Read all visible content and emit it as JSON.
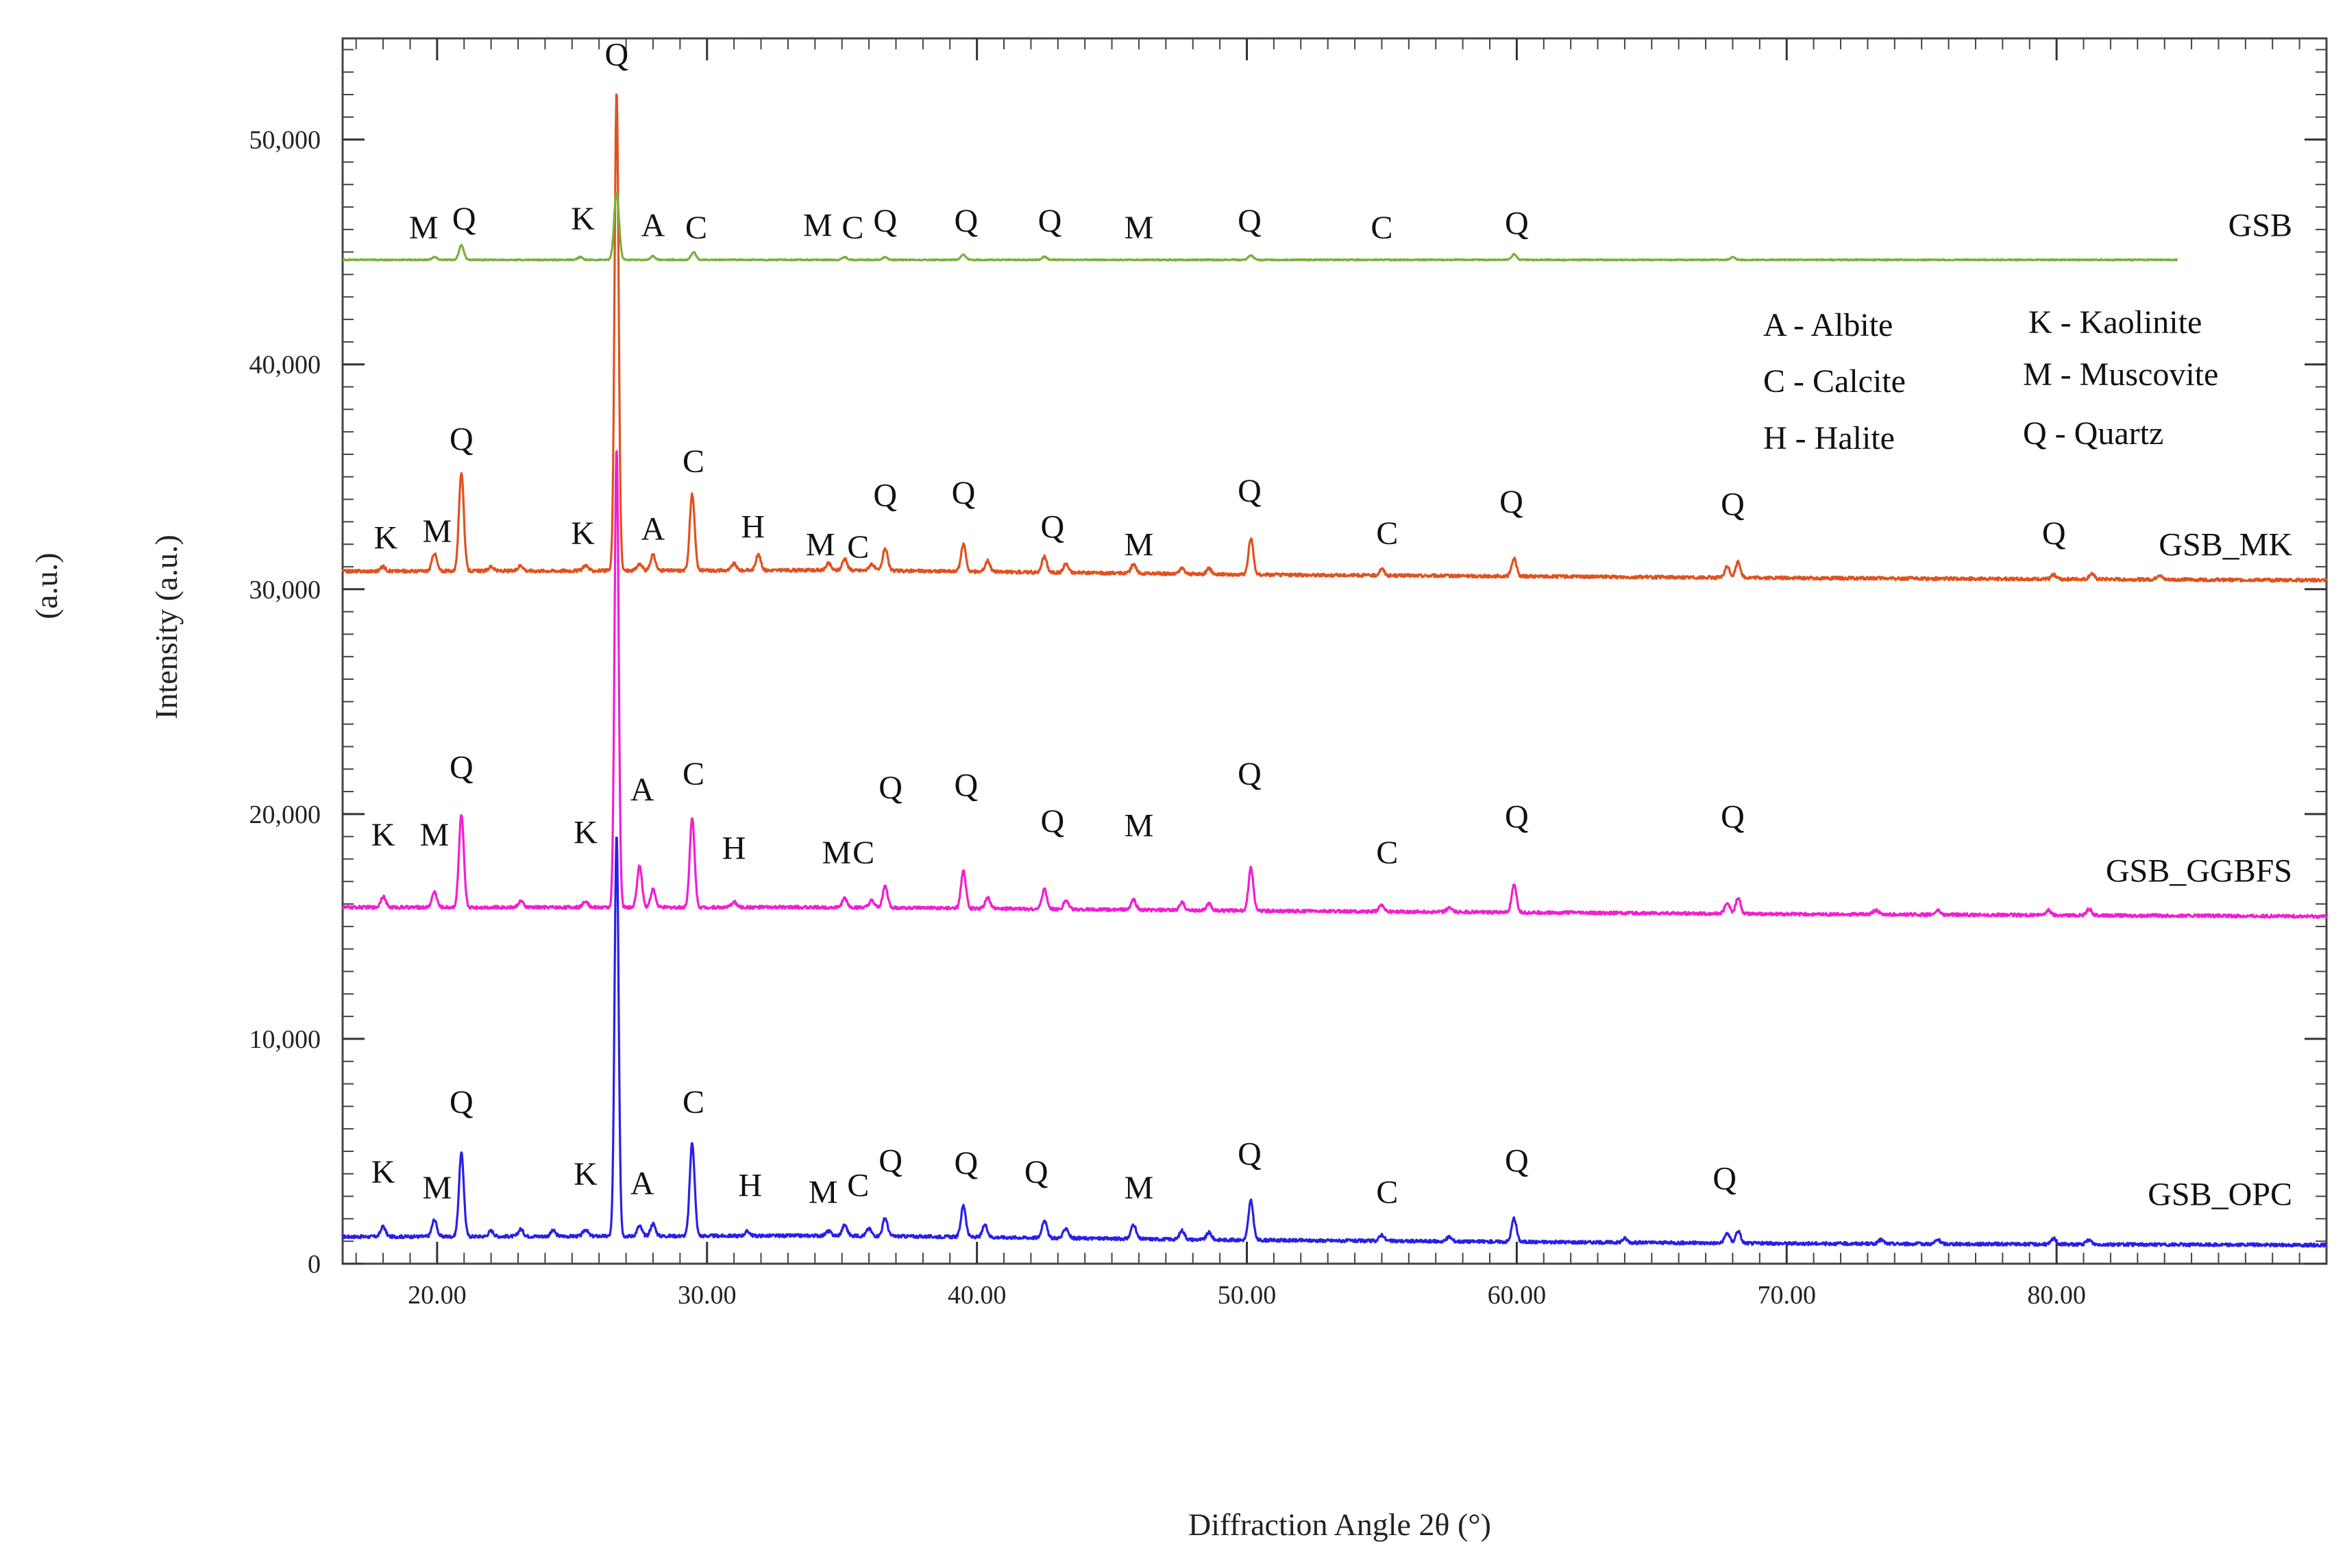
{
  "chart_data": {
    "type": "line",
    "title": "",
    "xlabel": "Diffraction Angle 2θ (°)",
    "ylabel": "Intensity (a.u.)",
    "outer_ylabel": "(a.u.)",
    "xlim": [
      16.5,
      90
    ],
    "ylim": [
      0,
      54500
    ],
    "x_ticks": [
      20,
      30,
      40,
      50,
      60,
      70,
      80
    ],
    "x_tick_labels": [
      "20.00",
      "30.00",
      "40.00",
      "50.00",
      "60.00",
      "70.00",
      "80.00"
    ],
    "y_ticks": [
      0,
      10000,
      20000,
      30000,
      40000,
      50000
    ],
    "y_tick_labels": [
      "0",
      "10,000",
      "20,000",
      "30,000",
      "40,000",
      "50,000"
    ],
    "legend": {
      "position": "top-right",
      "entries": [
        "A - Albite",
        "C - Calcite",
        "H - Halite",
        "K - Kaolinite",
        "M - Muscovite",
        "Q - Quartz"
      ]
    },
    "series": [
      {
        "name": "GSB_OPC",
        "color": "#2a1fe8",
        "x_end": 90,
        "baseline": [
          [
            16.5,
            1200
          ],
          [
            35,
            1250
          ],
          [
            50,
            1050
          ],
          [
            70,
            900
          ],
          [
            90,
            830
          ]
        ],
        "peaks": [
          [
            18,
            450
          ],
          [
            19.9,
            750
          ],
          [
            20.9,
            3700
          ],
          [
            22,
            250
          ],
          [
            23.1,
            320
          ],
          [
            24.3,
            250
          ],
          [
            25.5,
            300
          ],
          [
            26.65,
            17900
          ],
          [
            27.5,
            450
          ],
          [
            28,
            550
          ],
          [
            29.45,
            4150
          ],
          [
            31.5,
            200
          ],
          [
            34.5,
            200
          ],
          [
            35.1,
            480
          ],
          [
            36,
            320
          ],
          [
            36.6,
            800
          ],
          [
            39.5,
            1400
          ],
          [
            40.3,
            550
          ],
          [
            42.5,
            800
          ],
          [
            43.3,
            450
          ],
          [
            45.8,
            650
          ],
          [
            47.6,
            400
          ],
          [
            48.6,
            320
          ],
          [
            50.15,
            1750
          ],
          [
            55,
            280
          ],
          [
            57.5,
            200
          ],
          [
            59.9,
            1050
          ],
          [
            64,
            180
          ],
          [
            67.8,
            450
          ],
          [
            68.2,
            550
          ],
          [
            73.5,
            180
          ],
          [
            75.6,
            180
          ],
          [
            79.9,
            260
          ],
          [
            81.2,
            200
          ]
        ],
        "annotations": [
          [
            18.0,
            3600,
            "K"
          ],
          [
            20.0,
            2900,
            "M"
          ],
          [
            20.9,
            6700,
            "Q"
          ],
          [
            25.5,
            3500,
            "K"
          ],
          [
            27.6,
            3100,
            "A"
          ],
          [
            29.5,
            6700,
            "C"
          ],
          [
            31.6,
            3000,
            "H"
          ],
          [
            34.3,
            2700,
            "M"
          ],
          [
            35.6,
            3000,
            "C"
          ],
          [
            36.8,
            4100,
            "Q"
          ],
          [
            39.6,
            4000,
            "Q"
          ],
          [
            42.2,
            3600,
            "Q"
          ],
          [
            46.0,
            2900,
            "M"
          ],
          [
            50.1,
            4400,
            "Q"
          ],
          [
            55.2,
            2700,
            "C"
          ],
          [
            60.0,
            4100,
            "Q"
          ],
          [
            67.7,
            3300,
            "Q"
          ]
        ],
        "end_label": "GSB_OPC",
        "end_label_y": 2600
      },
      {
        "name": "GSB_GGBFS",
        "color": "#f21ed1",
        "x_end": 90,
        "baseline": [
          [
            16.5,
            15850
          ],
          [
            35,
            15850
          ],
          [
            50,
            15700
          ],
          [
            70,
            15550
          ],
          [
            90,
            15450
          ]
        ],
        "peaks": [
          [
            18,
            500
          ],
          [
            19.9,
            700
          ],
          [
            20.9,
            4100
          ],
          [
            23.1,
            280
          ],
          [
            25.5,
            300
          ],
          [
            26.65,
            20400
          ],
          [
            27.5,
            1850
          ],
          [
            28,
            800
          ],
          [
            29.45,
            3950
          ],
          [
            31,
            250
          ],
          [
            35.1,
            400
          ],
          [
            36.1,
            300
          ],
          [
            36.6,
            950
          ],
          [
            39.5,
            1650
          ],
          [
            40.4,
            500
          ],
          [
            42.5,
            900
          ],
          [
            43.3,
            400
          ],
          [
            45.8,
            450
          ],
          [
            47.6,
            350
          ],
          [
            48.6,
            300
          ],
          [
            50.15,
            1900
          ],
          [
            55,
            300
          ],
          [
            57.5,
            200
          ],
          [
            59.9,
            1200
          ],
          [
            67.8,
            500
          ],
          [
            68.2,
            700
          ],
          [
            73.3,
            200
          ],
          [
            75.6,
            200
          ],
          [
            79.7,
            220
          ],
          [
            81.2,
            300
          ]
        ],
        "annotations": [
          [
            18.0,
            18600,
            "K"
          ],
          [
            19.9,
            18600,
            "M"
          ],
          [
            20.9,
            21600,
            "Q"
          ],
          [
            25.5,
            18700,
            "K"
          ],
          [
            27.6,
            20600,
            "A"
          ],
          [
            29.5,
            21300,
            "C"
          ],
          [
            31.0,
            18000,
            "H"
          ],
          [
            34.8,
            17800,
            "M"
          ],
          [
            35.8,
            17800,
            "C"
          ],
          [
            36.8,
            20700,
            "Q"
          ],
          [
            39.6,
            20800,
            "Q"
          ],
          [
            42.8,
            19200,
            "Q"
          ],
          [
            46.0,
            19000,
            "M"
          ],
          [
            50.1,
            21300,
            "Q"
          ],
          [
            55.2,
            17800,
            "C"
          ],
          [
            60.0,
            19400,
            "Q"
          ],
          [
            68.0,
            19400,
            "Q"
          ]
        ],
        "end_label": "GSB_GGBFS",
        "end_label_y": 17000
      },
      {
        "name": "GSB_MK",
        "color": "#e0521f",
        "x_end": 90,
        "baseline": [
          [
            16.5,
            30800
          ],
          [
            35,
            30850
          ],
          [
            50,
            30650
          ],
          [
            70,
            30500
          ],
          [
            90,
            30400
          ]
        ],
        "peaks": [
          [
            18,
            200
          ],
          [
            19.9,
            800
          ],
          [
            20.9,
            4400
          ],
          [
            22,
            200
          ],
          [
            23.1,
            250
          ],
          [
            25.5,
            250
          ],
          [
            26.65,
            21300
          ],
          [
            27.5,
            300
          ],
          [
            28,
            700
          ],
          [
            29.45,
            3400
          ],
          [
            31,
            300
          ],
          [
            31.9,
            700
          ],
          [
            34.5,
            300
          ],
          [
            35.1,
            500
          ],
          [
            36.1,
            300
          ],
          [
            36.6,
            1000
          ],
          [
            39.5,
            1200
          ],
          [
            40.4,
            500
          ],
          [
            42.5,
            700
          ],
          [
            43.3,
            400
          ],
          [
            45.8,
            400
          ],
          [
            47.6,
            250
          ],
          [
            48.6,
            250
          ],
          [
            50.15,
            1600
          ],
          [
            55,
            300
          ],
          [
            59.9,
            800
          ],
          [
            67.8,
            500
          ],
          [
            68.2,
            700
          ],
          [
            79.9,
            200
          ],
          [
            81.3,
            250
          ],
          [
            83.8,
            200
          ]
        ],
        "annotations": [
          [
            18.1,
            31800,
            "K"
          ],
          [
            20.0,
            32100,
            "M"
          ],
          [
            20.9,
            36200,
            "Q"
          ],
          [
            25.4,
            32000,
            "K"
          ],
          [
            28.0,
            32200,
            "A"
          ],
          [
            29.5,
            35200,
            "C"
          ],
          [
            31.7,
            32300,
            "H"
          ],
          [
            34.2,
            31500,
            "M"
          ],
          [
            35.6,
            31400,
            "C"
          ],
          [
            36.6,
            33700,
            "Q"
          ],
          [
            39.5,
            33800,
            "Q"
          ],
          [
            42.8,
            32300,
            "Q"
          ],
          [
            46.0,
            31500,
            "M"
          ],
          [
            50.1,
            33900,
            "Q"
          ],
          [
            55.2,
            32000,
            "C"
          ],
          [
            59.8,
            33400,
            "Q"
          ],
          [
            68.0,
            33300,
            "Q"
          ],
          [
            79.9,
            32000,
            "Q"
          ]
        ],
        "end_label": "GSB_MK",
        "end_label_y": 31500
      },
      {
        "name": "GSB",
        "color": "#78b13b",
        "x_end": 84.5,
        "baseline": [
          [
            16.5,
            44650
          ],
          [
            84.5,
            44650
          ]
        ],
        "peaks": [
          [
            19.9,
            120
          ],
          [
            20.9,
            650
          ],
          [
            25.3,
            120
          ],
          [
            26.65,
            3000
          ],
          [
            28,
            160
          ],
          [
            29.5,
            350
          ],
          [
            35.1,
            120
          ],
          [
            36.6,
            120
          ],
          [
            39.5,
            220
          ],
          [
            42.5,
            140
          ],
          [
            50.15,
            200
          ],
          [
            59.9,
            250
          ],
          [
            68,
            120
          ]
        ],
        "annotations": [
          [
            19.5,
            45600,
            "M"
          ],
          [
            21.0,
            46000,
            "Q"
          ],
          [
            25.4,
            46000,
            "K"
          ],
          [
            28.0,
            45700,
            "A"
          ],
          [
            29.6,
            45600,
            "C"
          ],
          [
            34.1,
            45700,
            "M"
          ],
          [
            35.4,
            45600,
            "C"
          ],
          [
            36.6,
            45900,
            "Q"
          ],
          [
            39.6,
            45900,
            "Q"
          ],
          [
            42.7,
            45900,
            "Q"
          ],
          [
            46.0,
            45600,
            "M"
          ],
          [
            50.1,
            45900,
            "Q"
          ],
          [
            55.0,
            45600,
            "C"
          ],
          [
            60.0,
            45800,
            "Q"
          ]
        ],
        "end_label": "GSB",
        "end_label_y": 45700
      }
    ],
    "tallest_peak_label": "Q",
    "tallest_peak_x": 26.65,
    "tallest_peak_y": 53300
  }
}
